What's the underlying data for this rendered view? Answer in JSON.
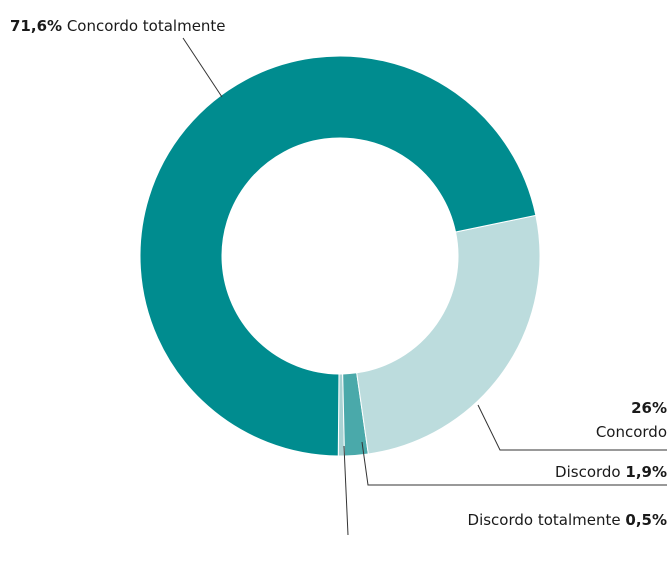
{
  "chart_data": {
    "type": "donut",
    "categories": [
      "Concordo totalmente",
      "Concordo",
      "Discordo",
      "Discordo totalmente"
    ],
    "values": [
      71.6,
      26,
      1.9,
      0.5
    ],
    "value_labels": [
      "71,6%",
      "26%",
      "1,9%",
      "0,5%"
    ],
    "colors": [
      "#008c8f",
      "#bcdcdd",
      "#4aa9aa",
      "#a9d2d3"
    ]
  }
}
